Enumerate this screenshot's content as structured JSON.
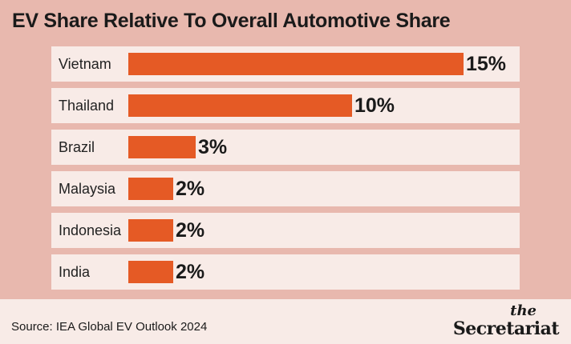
{
  "chart_data": {
    "type": "bar",
    "orientation": "horizontal",
    "title": "EV Share Relative To Overall Automotive Share",
    "categories": [
      "Vietnam",
      "Thailand",
      "Brazil",
      "Malaysia",
      "Indonesia",
      "India"
    ],
    "values": [
      15,
      10,
      3,
      2,
      2,
      2
    ],
    "value_labels": [
      "15%",
      "10%",
      "3%",
      "2%",
      "2%",
      "2%"
    ],
    "unit": "%",
    "xlim": [
      0,
      15
    ],
    "grid": false,
    "bar_color": "#e55a25",
    "row_color": "#f8ebe7",
    "background_color": "#e8b8ae"
  },
  "footer": {
    "source": "Source: IEA Global EV Outlook 2024"
  },
  "logo": {
    "line1": "the",
    "line2": "Secretariat"
  }
}
